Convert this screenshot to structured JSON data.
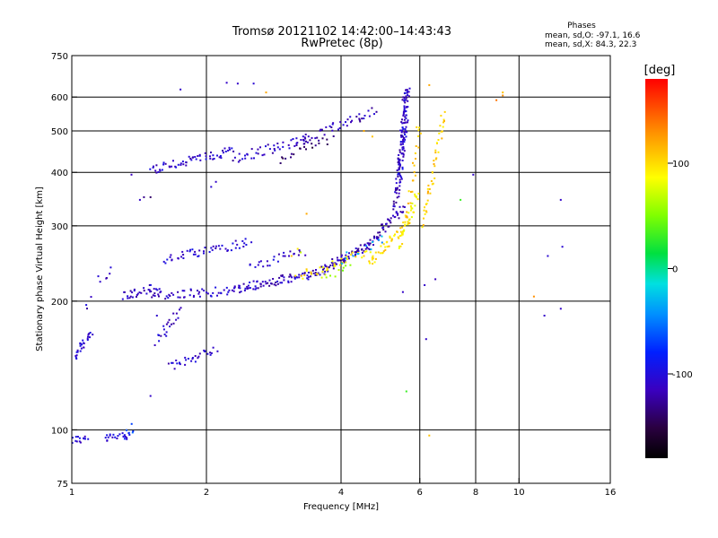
{
  "chart_data": {
    "type": "scatter",
    "title": "Tromsø 20121102 14:42:00–14:43:43",
    "subtitle": "RwPretec (8p)",
    "xlabel": "Frequency [MHz]",
    "ylabel": "Stationary phase Virtual Height [km]",
    "x_scale": "log",
    "y_scale": "log",
    "xlim": [
      1,
      16
    ],
    "ylim": [
      75,
      750
    ],
    "x_ticks": [
      1,
      2,
      4,
      6,
      8,
      10,
      16
    ],
    "x_tick_labels": [
      "1",
      "2",
      "4",
      "6",
      "8",
      "10",
      "16"
    ],
    "x_gridlines": [
      2,
      4,
      6,
      8,
      10
    ],
    "y_ticks": [
      75,
      100,
      200,
      300,
      400,
      500,
      600,
      750
    ],
    "y_tick_labels": [
      "75",
      "100",
      "200",
      "300",
      "400",
      "500",
      "600",
      "750"
    ],
    "y_gridlines": [
      100,
      200,
      300,
      400,
      500,
      600
    ],
    "grid": true,
    "stats": {
      "heading": "Phases",
      "line_o": "mean, sd,O: -97.1, 16.6",
      "line_x": "mean, sd,X:  84.3, 22.3"
    },
    "colorbar": {
      "label": "[deg]",
      "min": -180,
      "max": 180,
      "ticks": [
        100,
        0,
        -100
      ],
      "tick_labels": [
        "100",
        "0",
        "-100"
      ]
    },
    "traces": [
      {
        "x": [
          1.0,
          1.08
        ],
        "y": [
          95,
          95
        ],
        "phase": -105,
        "n": 14
      },
      {
        "x": [
          1.18,
          1.35
        ],
        "y": [
          95,
          98
        ],
        "phase": -100,
        "n": 22
      },
      {
        "x": [
          1.32,
          1.38
        ],
        "y": [
          97,
          102
        ],
        "phase": -70,
        "n": 6
      },
      {
        "x": [
          1.02,
          1.1
        ],
        "y": [
          148,
          168
        ],
        "phase": -108,
        "n": 28
      },
      {
        "x": [
          1.07,
          1.09
        ],
        "y": [
          190,
          200
        ],
        "phase": -110,
        "n": 3
      },
      {
        "x": [
          1.15,
          1.22
        ],
        "y": [
          225,
          235
        ],
        "phase": -115,
        "n": 6
      },
      {
        "x": [
          1.3,
          1.55
        ],
        "y": [
          205,
          215
        ],
        "phase": -112,
        "n": 30
      },
      {
        "x": [
          1.55,
          1.75
        ],
        "y": [
          160,
          190
        ],
        "phase": -110,
        "n": 22
      },
      {
        "x": [
          1.65,
          2.1
        ],
        "y": [
          140,
          155
        ],
        "phase": -108,
        "n": 30
      },
      {
        "x": [
          1.5,
          2.3
        ],
        "y": [
          205,
          212
        ],
        "phase": -110,
        "n": 50
      },
      {
        "x": [
          2.3,
          3.5
        ],
        "y": [
          212,
          232
        ],
        "phase": -112,
        "n": 80
      },
      {
        "x": [
          3.5,
          4.6
        ],
        "y": [
          232,
          270
        ],
        "phase": -115,
        "n": 70
      },
      {
        "x": [
          4.6,
          5.5
        ],
        "y": [
          270,
          330
        ],
        "phase": -118,
        "n": 50
      },
      {
        "x": [
          5.3,
          5.6
        ],
        "y": [
          330,
          620
        ],
        "phase": -115,
        "n": 90
      },
      {
        "x": [
          5.4,
          5.65
        ],
        "y": [
          380,
          630
        ],
        "phase": -105,
        "n": 60
      },
      {
        "x": [
          1.6,
          2.5
        ],
        "y": [
          250,
          275
        ],
        "phase": -105,
        "n": 50
      },
      {
        "x": [
          2.5,
          3.3
        ],
        "y": [
          240,
          262
        ],
        "phase": -108,
        "n": 25
      },
      {
        "x": [
          1.5,
          2.3
        ],
        "y": [
          405,
          450
        ],
        "phase": -108,
        "n": 60
      },
      {
        "x": [
          2.3,
          3.4
        ],
        "y": [
          430,
          480
        ],
        "phase": -112,
        "n": 45
      },
      {
        "x": [
          3.2,
          4.8
        ],
        "y": [
          470,
          560
        ],
        "phase": -115,
        "n": 45
      },
      {
        "x": [
          2.9,
          3.8
        ],
        "y": [
          430,
          480
        ],
        "phase": -140,
        "n": 20
      },
      {
        "x": [
          3.2,
          4.6
        ],
        "y": [
          228,
          262
        ],
        "phase": 95,
        "n": 35
      },
      {
        "x": [
          4.6,
          5.5
        ],
        "y": [
          245,
          300
        ],
        "phase": 100,
        "n": 40
      },
      {
        "x": [
          5.4,
          5.9
        ],
        "y": [
          270,
          360
        ],
        "phase": 90,
        "n": 40
      },
      {
        "x": [
          5.6,
          6.0
        ],
        "y": [
          300,
          520
        ],
        "phase": 110,
        "n": 25
      },
      {
        "x": [
          6.1,
          6.8
        ],
        "y": [
          300,
          550
        ],
        "phase": 105,
        "n": 45
      },
      {
        "x": [
          3.6,
          4.2
        ],
        "y": [
          228,
          240
        ],
        "phase": 60,
        "n": 10
      },
      {
        "x": [
          4.0,
          5.0
        ],
        "y": [
          250,
          280
        ],
        "phase": -35,
        "n": 12
      }
    ],
    "points": [
      {
        "x": 1.75,
        "y": 625,
        "phase": -110
      },
      {
        "x": 2.22,
        "y": 648,
        "phase": -110
      },
      {
        "x": 2.35,
        "y": 645,
        "phase": -110
      },
      {
        "x": 2.55,
        "y": 645,
        "phase": -105
      },
      {
        "x": 2.72,
        "y": 615,
        "phase": 120
      },
      {
        "x": 2.1,
        "y": 380,
        "phase": -110
      },
      {
        "x": 2.05,
        "y": 370,
        "phase": -105
      },
      {
        "x": 1.42,
        "y": 345,
        "phase": -110
      },
      {
        "x": 1.45,
        "y": 350,
        "phase": -130
      },
      {
        "x": 1.5,
        "y": 350,
        "phase": -140
      },
      {
        "x": 1.55,
        "y": 185,
        "phase": -108
      },
      {
        "x": 1.5,
        "y": 120,
        "phase": -110
      },
      {
        "x": 1.36,
        "y": 395,
        "phase": -115
      },
      {
        "x": 3.2,
        "y": 265,
        "phase": 95
      },
      {
        "x": 3.1,
        "y": 255,
        "phase": 110
      },
      {
        "x": 3.35,
        "y": 320,
        "phase": 120
      },
      {
        "x": 3.25,
        "y": 260,
        "phase": 70
      },
      {
        "x": 4.5,
        "y": 500,
        "phase": 120
      },
      {
        "x": 4.7,
        "y": 485,
        "phase": 110
      },
      {
        "x": 5.5,
        "y": 210,
        "phase": -110
      },
      {
        "x": 5.6,
        "y": 123,
        "phase": 30
      },
      {
        "x": 6.15,
        "y": 218,
        "phase": -110
      },
      {
        "x": 6.2,
        "y": 163,
        "phase": -110
      },
      {
        "x": 6.3,
        "y": 97,
        "phase": 110
      },
      {
        "x": 6.3,
        "y": 640,
        "phase": 120
      },
      {
        "x": 6.5,
        "y": 225,
        "phase": -115
      },
      {
        "x": 7.4,
        "y": 345,
        "phase": 30
      },
      {
        "x": 7.9,
        "y": 395,
        "phase": -110
      },
      {
        "x": 8.9,
        "y": 590,
        "phase": 140
      },
      {
        "x": 9.2,
        "y": 605,
        "phase": 130
      },
      {
        "x": 9.2,
        "y": 615,
        "phase": 110
      },
      {
        "x": 10.8,
        "y": 205,
        "phase": 130
      },
      {
        "x": 11.4,
        "y": 185,
        "phase": -110
      },
      {
        "x": 11.6,
        "y": 255,
        "phase": -105
      },
      {
        "x": 12.4,
        "y": 345,
        "phase": -110
      },
      {
        "x": 12.5,
        "y": 268,
        "phase": -105
      },
      {
        "x": 12.4,
        "y": 192,
        "phase": -110
      }
    ]
  }
}
